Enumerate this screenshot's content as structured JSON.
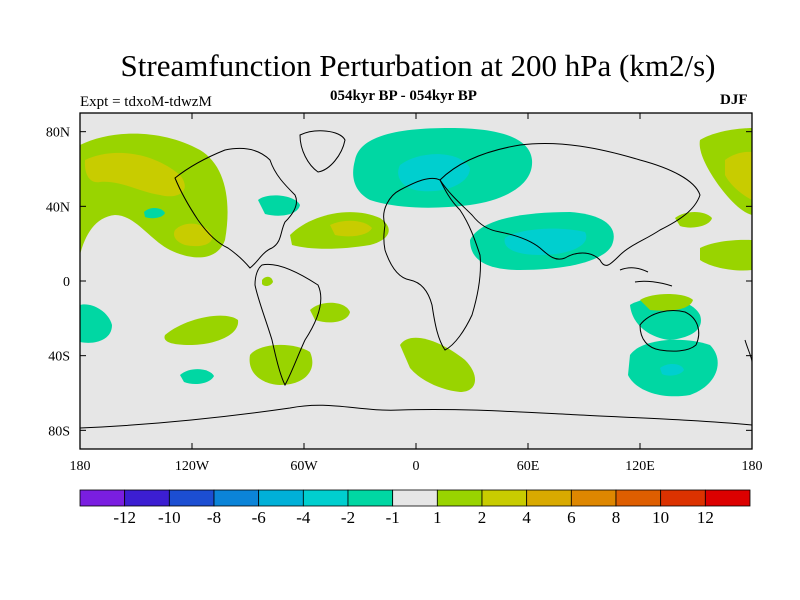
{
  "title": "Streamfunction Perturbation at 200 hPa (km2/s)",
  "experiment": "Expt = tdxoM-tdwzM",
  "subtitle": "054kyr BP - 054kyr BP",
  "season": "DJF",
  "map": {
    "projection": "cylindrical equidistant",
    "lon_range": [
      -180,
      180
    ],
    "lat_range": [
      -90,
      90
    ],
    "background_color": "#e6e6e6",
    "x_tick_labels": [
      "180",
      "120W",
      "60W",
      "0",
      "60E",
      "120E",
      "180"
    ],
    "y_tick_labels": [
      "80N",
      "40N",
      "0",
      "40S",
      "80S"
    ]
  },
  "colorbar": {
    "colors": [
      "#7a1ee0",
      "#3c1ed2",
      "#1c4ed2",
      "#0b84d8",
      "#00b0d8",
      "#00cfcf",
      "#00d7a3",
      "#e6e6e6",
      "#99d400",
      "#c8cc00",
      "#d9aa00",
      "#de8700",
      "#de5e00",
      "#dc3200",
      "#dc0000"
    ],
    "labels": [
      "-12",
      "-10",
      "-8",
      "-6",
      "-4",
      "-2",
      "-1",
      "1",
      "2",
      "4",
      "6",
      "8",
      "10",
      "12"
    ]
  }
}
